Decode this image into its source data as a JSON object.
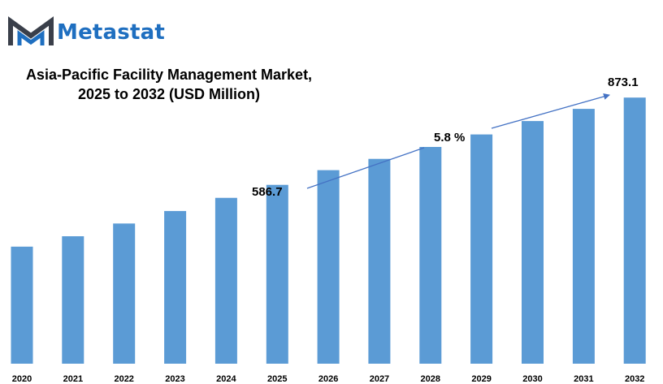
{
  "brand": {
    "name": "Metastat",
    "logo_icon": "metastat-m-logo-icon",
    "colors": {
      "dark": "#3a3f4a",
      "blue": "#1f6fc0"
    }
  },
  "chart_data": {
    "type": "bar",
    "title": "Asia-Pacific Facility Management Market,",
    "subtitle": "2025 to 2032 (USD Million)",
    "xlabel": "",
    "ylabel": "",
    "categories": [
      "2020",
      "2021",
      "2022",
      "2023",
      "2024",
      "2025",
      "2026",
      "2027",
      "2028",
      "2029",
      "2030",
      "2031",
      "2032"
    ],
    "values": [
      384,
      418,
      460,
      501,
      544,
      586.7,
      635,
      672,
      711,
      752,
      796,
      836,
      873.1
    ],
    "ylim": [
      0,
      1000
    ],
    "bar_color": "#5b9bd5",
    "grid": false,
    "annotations": {
      "start_value": "586.7",
      "end_value": "873.1",
      "cagr": "5.8  %"
    }
  }
}
